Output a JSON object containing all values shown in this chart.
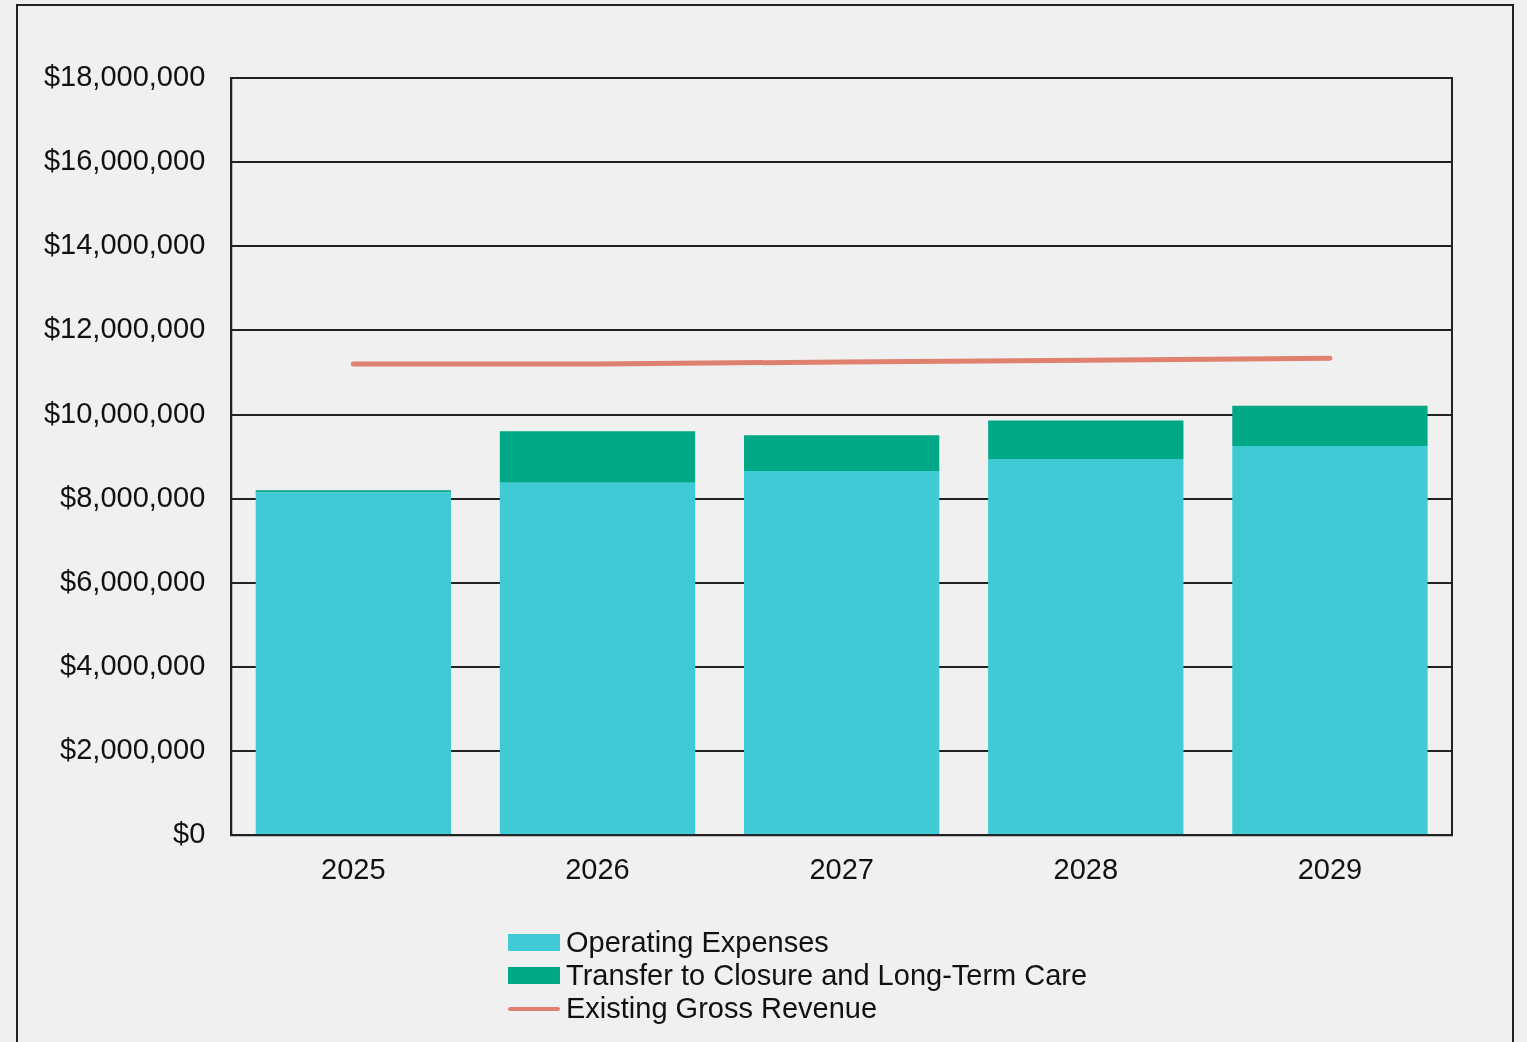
{
  "chart_data": {
    "type": "bar",
    "stacked": true,
    "categories": [
      "2025",
      "2026",
      "2027",
      "2028",
      "2029"
    ],
    "series": [
      {
        "name": "Operating Expenses",
        "color": "#3ecbd5",
        "values": [
          8150000,
          8380000,
          8660000,
          8940000,
          9250000
        ]
      },
      {
        "name": "Transfer to Closure and Long-Term Care",
        "color": "#00a886",
        "values": [
          50000,
          1220000,
          850000,
          920000,
          960000
        ]
      },
      {
        "name": "Existing Gross Revenue",
        "type": "line",
        "color": "#e0806e",
        "values": [
          11200000,
          11200000,
          11250000,
          11290000,
          11340000
        ]
      }
    ],
    "ylim": [
      0,
      18000000
    ],
    "yticks": [
      {
        "value": 0,
        "label": "$0"
      },
      {
        "value": 2000000,
        "label": "$2,000,000"
      },
      {
        "value": 4000000,
        "label": "$4,000,000"
      },
      {
        "value": 6000000,
        "label": "$6,000,000"
      },
      {
        "value": 8000000,
        "label": "$8,000,000"
      },
      {
        "value": 10000000,
        "label": "$10,000,000"
      },
      {
        "value": 12000000,
        "label": "$12,000,000"
      },
      {
        "value": 14000000,
        "label": "$14,000,000"
      },
      {
        "value": 16000000,
        "label": "$16,000,000"
      },
      {
        "value": 18000000,
        "label": "$18,000,000"
      }
    ],
    "grid": "y",
    "legend": "bottom",
    "marker": "none"
  }
}
